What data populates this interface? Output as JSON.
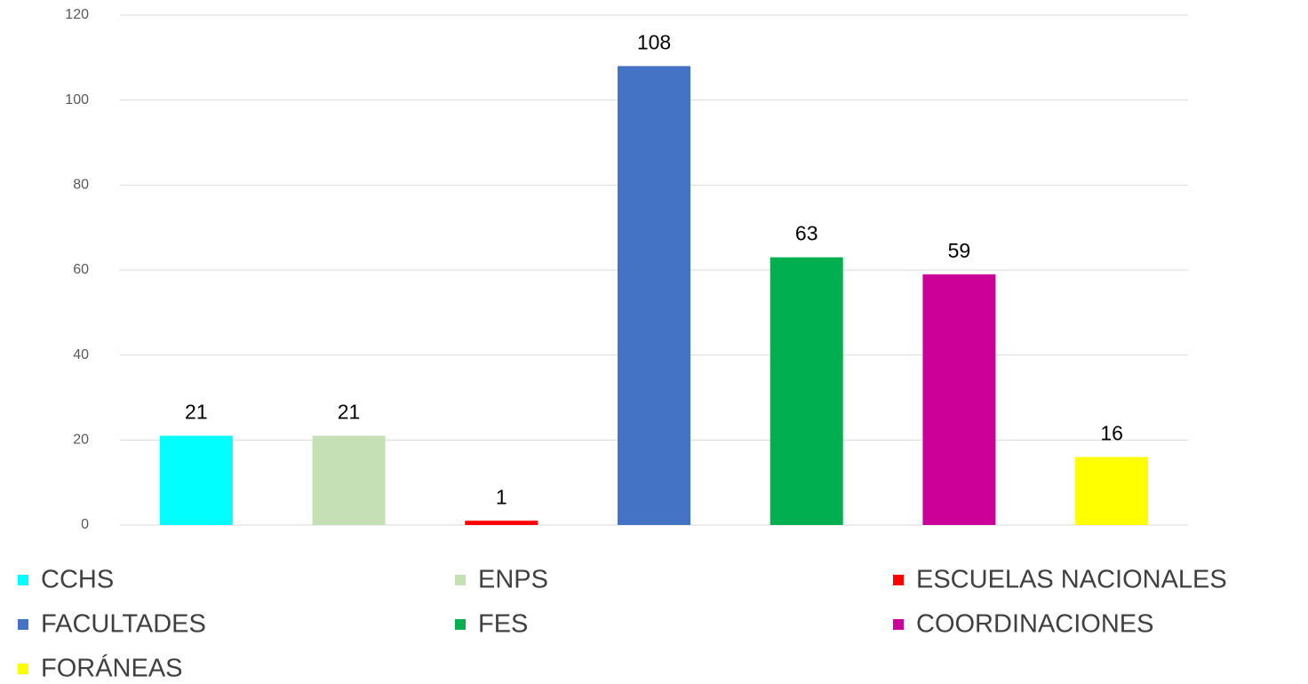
{
  "chart_data": {
    "type": "bar",
    "series": [
      {
        "name": "CCHS",
        "color": "#00ffff",
        "values": [
          21
        ]
      },
      {
        "name": "ENPS",
        "color": "#c5e0b4",
        "values": [
          21
        ]
      },
      {
        "name": "ESCUELAS NACIONALES",
        "color": "#ff0000",
        "values": [
          1
        ]
      },
      {
        "name": "FACULTADES",
        "color": "#4472c4",
        "values": [
          108
        ]
      },
      {
        "name": "FES",
        "color": "#00b050",
        "values": [
          63
        ]
      },
      {
        "name": "COORDINACIONES",
        "color": "#cc0099",
        "values": [
          59
        ]
      },
      {
        "name": "FORÁNEAS",
        "color": "#ffff00",
        "values": [
          16
        ]
      }
    ],
    "ylim": [
      0,
      120
    ],
    "yticks": [
      0,
      20,
      40,
      60,
      80,
      100,
      120
    ],
    "grid": true,
    "legend": "bottom"
  }
}
